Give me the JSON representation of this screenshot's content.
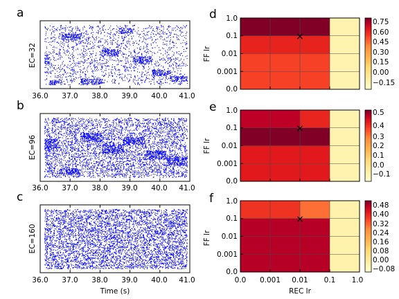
{
  "raster": {
    "x_ticks": [
      "36.0",
      "37.0",
      "38.0",
      "39.0",
      "40.0",
      "41.0"
    ],
    "xlabel": "Time (s)",
    "xlim": [
      36.0,
      41.0
    ],
    "dot_color": "#0000ff",
    "panels": [
      {
        "letter": "a",
        "ylabel": "EC=32"
      },
      {
        "letter": "b",
        "ylabel": "EC=96"
      },
      {
        "letter": "c",
        "ylabel": "EC=160"
      }
    ]
  },
  "heatmap": {
    "y_ticks": [
      "1.0",
      "0.1",
      "0.01",
      "0.001",
      "0.0"
    ],
    "x_ticks": [
      "0.0",
      "0.001",
      "0.01",
      "0.1",
      "1.0"
    ],
    "ylabel": "FF lr",
    "xlabel": "REC lr",
    "marker": "×",
    "panels": [
      {
        "letter": "d",
        "cbar_ticks": [
          "0.75",
          "0.60",
          "0.45",
          "0.30",
          "0.15",
          "0.00",
          "−0.15"
        ]
      },
      {
        "letter": "e",
        "cbar_ticks": [
          "0.5",
          "0.4",
          "0.3",
          "0.2",
          "0.1",
          "0.0",
          "−0.1"
        ]
      },
      {
        "letter": "f",
        "cbar_ticks": [
          "0.48",
          "0.40",
          "0.32",
          "0.24",
          "0.16",
          "0.08",
          "0.00",
          "−0.08"
        ]
      }
    ]
  },
  "chart_data": [
    {
      "type": "scatter",
      "panel": "a",
      "ylabel": "EC=32",
      "xlabel": "",
      "xlim": [
        36.0,
        41.0
      ],
      "series": [
        {
          "values": "raster of unit spike times (dense blue dots), switching bands every ~0.4 s"
        }
      ]
    },
    {
      "type": "scatter",
      "panel": "b",
      "ylabel": "EC=96",
      "xlim": [
        36.0,
        41.0
      ],
      "series": [
        {
          "values": "raster of unit spike times"
        }
      ]
    },
    {
      "type": "scatter",
      "panel": "c",
      "ylabel": "EC=160",
      "xlabel": "Time (s)",
      "xlim": [
        36.0,
        41.0
      ],
      "series": [
        {
          "values": "raster of unit spike times"
        }
      ]
    },
    {
      "type": "heatmap",
      "panel": "d",
      "x": [
        "0.0",
        "0.001",
        "0.01",
        "0.1",
        "1.0"
      ],
      "y": [
        "1.0",
        "0.1",
        "0.01",
        "0.001",
        "0.0"
      ],
      "values": [
        [
          0.8,
          0.8,
          0.8,
          -0.1
        ],
        [
          0.62,
          0.62,
          0.62,
          -0.1
        ],
        [
          0.55,
          0.55,
          0.55,
          -0.1
        ],
        [
          0.55,
          0.55,
          0.55,
          -0.1
        ]
      ],
      "vmin": -0.2,
      "vmax": 0.8,
      "marker": {
        "x_edge": "0.01",
        "y_edge": "0.1"
      }
    },
    {
      "type": "heatmap",
      "panel": "e",
      "x": [
        "0.0",
        "0.001",
        "0.01",
        "0.1",
        "1.0"
      ],
      "y": [
        "1.0",
        "0.1",
        "0.01",
        "0.001",
        "0.0"
      ],
      "values": [
        [
          0.5,
          0.5,
          0.42,
          -0.08
        ],
        [
          0.55,
          0.55,
          0.55,
          -0.08
        ],
        [
          0.44,
          0.44,
          0.44,
          -0.08
        ],
        [
          0.44,
          0.44,
          0.44,
          -0.08
        ]
      ],
      "vmin": -0.15,
      "vmax": 0.55,
      "marker": {
        "x_edge": "0.01",
        "y_edge": "0.1"
      }
    },
    {
      "type": "heatmap",
      "panel": "f",
      "x": [
        "0.0",
        "0.001",
        "0.01",
        "0.1",
        "1.0"
      ],
      "y": [
        "1.0",
        "0.1",
        "0.01",
        "0.001",
        "0.0"
      ],
      "values": [
        [
          0.38,
          0.38,
          0.3,
          -0.05
        ],
        [
          0.48,
          0.48,
          0.48,
          -0.05
        ],
        [
          0.48,
          0.48,
          0.48,
          -0.05
        ],
        [
          0.48,
          0.48,
          0.48,
          -0.05
        ]
      ],
      "vmin": -0.12,
      "vmax": 0.52,
      "marker": {
        "x_edge": "0.01",
        "y_edge": "0.1"
      }
    }
  ]
}
